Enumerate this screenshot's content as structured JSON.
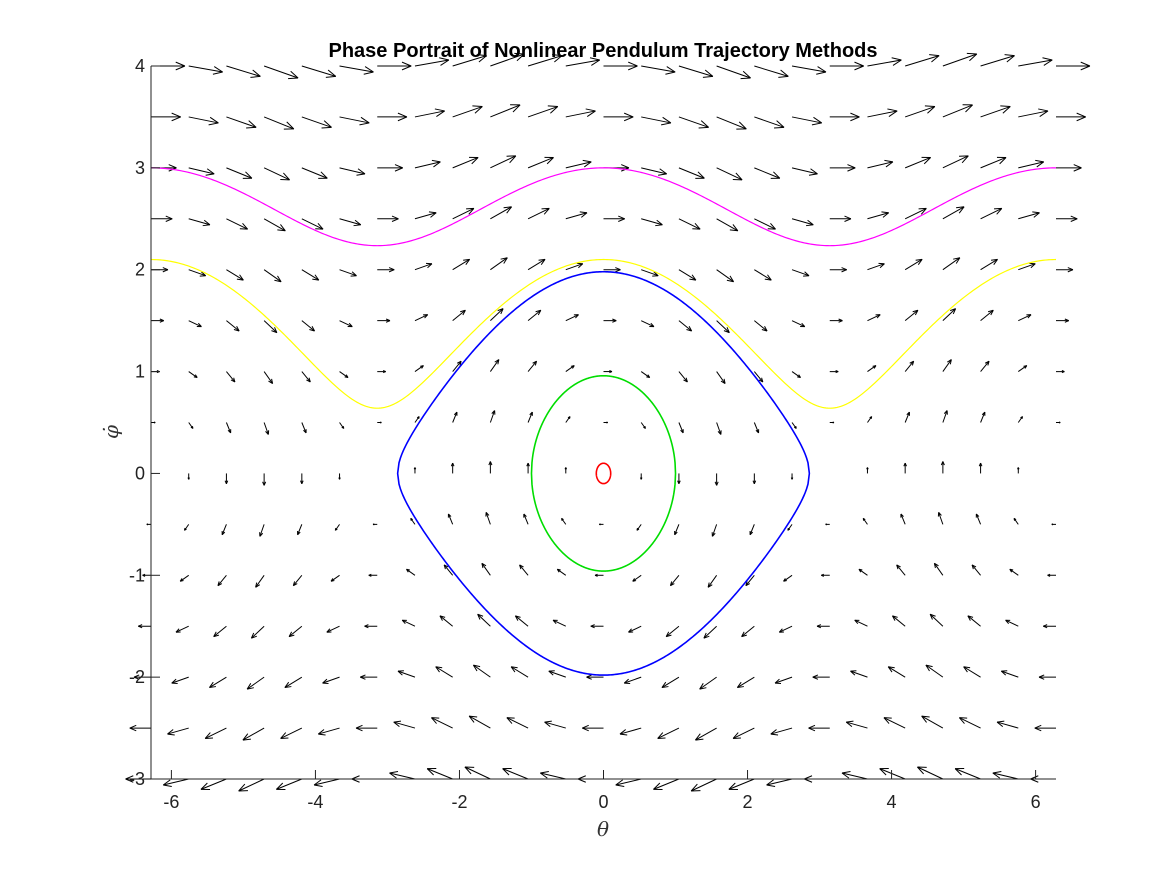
{
  "chart_data": {
    "type": "quiver",
    "title": "Phase Portrait of Nonlinear Pendulum Trajectory Methods",
    "xlabel": "θ",
    "ylabel": "φ̇",
    "xlim": [
      -6.2832,
      6.2832
    ],
    "ylim": [
      -3,
      4
    ],
    "xticks": [
      -6,
      -4,
      -2,
      0,
      2,
      4,
      6
    ],
    "yticks": [
      -3,
      -2,
      -1,
      0,
      1,
      2,
      3,
      4
    ],
    "grid": false,
    "box": "open (left and bottom axes only)",
    "vector_field": {
      "equations": "dθ/dt = φ, dφ/dt = -sin(θ)",
      "theta_samples": [
        -6.2832,
        -5.7596,
        -5.236,
        -4.7124,
        -4.1888,
        -3.6652,
        -3.1416,
        -2.618,
        -2.0944,
        -1.5708,
        -1.0472,
        -0.5236,
        0,
        0.5236,
        1.0472,
        1.5708,
        2.0944,
        2.618,
        3.1416,
        3.6652,
        4.1888,
        4.7124,
        5.236,
        5.7596,
        6.2832
      ],
      "phi_samples": [
        -3,
        -2.5,
        -2,
        -1.5,
        -1,
        -0.5,
        0,
        0.5,
        1,
        1.5,
        2,
        2.5,
        3,
        3.5,
        4
      ],
      "color": "#000000"
    },
    "series": [
      {
        "initial_theta": 0.1,
        "initial_phi": 0,
        "type": "closed",
        "color": "#ff0000"
      },
      {
        "initial_theta": 1.0,
        "initial_phi": 0,
        "type": "closed",
        "color": "#00dd00"
      },
      {
        "initial_theta": 0,
        "initial_phi": 1.98,
        "type": "closed",
        "color": "#0000ff"
      },
      {
        "initial_theta": 0,
        "initial_phi": 2.1,
        "type": "rotating",
        "color": "#ffff00"
      },
      {
        "initial_theta": 0,
        "initial_phi": 3.0,
        "type": "rotating",
        "color": "#ff00ff"
      }
    ]
  }
}
